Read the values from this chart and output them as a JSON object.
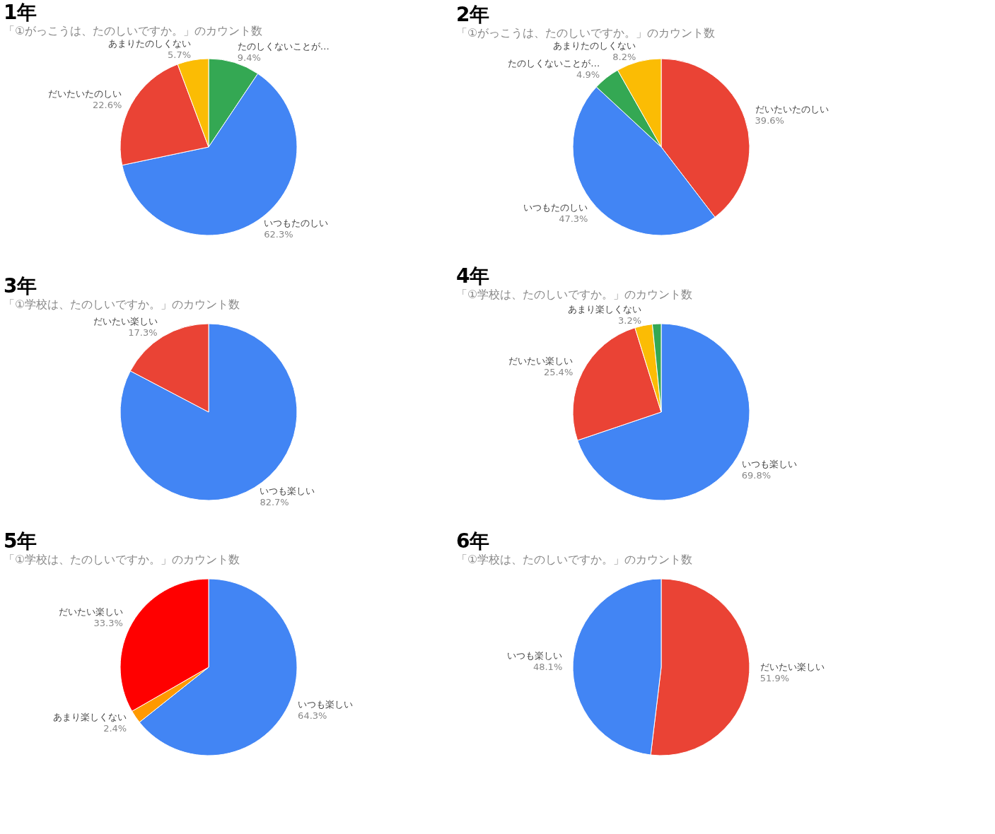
{
  "chart_data": [
    {
      "type": "pie",
      "title": "1年",
      "subtitle": "「①がっこうは、たのしいですか。」のカウント数",
      "categories": [
        "たのしくないことが…",
        "いつもたのしい",
        "だいたいたのしい",
        "あまりたのしくない"
      ],
      "values": [
        9.4,
        62.3,
        22.6,
        5.7
      ],
      "colors": [
        "#34a853",
        "#4285f4",
        "#ea4335",
        "#fbbc04"
      ],
      "value_labels": [
        "9.4%",
        "62.3%",
        "22.6%",
        "5.7%"
      ]
    },
    {
      "type": "pie",
      "title": "2年",
      "subtitle": "「①がっこうは、たのしいですか。」のカウント数",
      "categories": [
        "だいたいたのしい",
        "いつもたのしい",
        "たのしくないことが…",
        "あまりたのしくない"
      ],
      "values": [
        39.6,
        47.3,
        4.9,
        8.2
      ],
      "colors": [
        "#ea4335",
        "#4285f4",
        "#34a853",
        "#fbbc04"
      ],
      "value_labels": [
        "39.6%",
        "47.3%",
        "4.9%",
        "8.2%"
      ]
    },
    {
      "type": "pie",
      "title": "3年",
      "subtitle": "「①学校は、たのしいですか。」のカウント数",
      "categories": [
        "いつも楽しい",
        "だいたい楽しい"
      ],
      "values": [
        82.7,
        17.3
      ],
      "colors": [
        "#4285f4",
        "#ea4335"
      ],
      "value_labels": [
        "82.7%",
        "17.3%"
      ]
    },
    {
      "type": "pie",
      "title": "4年",
      "subtitle": "「①学校は、たのしいですか。」のカウント数",
      "categories": [
        "いつも楽しい",
        "だいたい楽しい",
        "あまり楽しくない",
        null
      ],
      "values": [
        69.8,
        25.4,
        3.2,
        1.6
      ],
      "colors": [
        "#4285f4",
        "#ea4335",
        "#fbbc04",
        "#34a853"
      ],
      "value_labels": [
        "69.8%",
        "25.4%",
        "3.2%",
        null
      ]
    },
    {
      "type": "pie",
      "title": "5年",
      "subtitle": "「①学校は、たのしいですか。」のカウント数",
      "categories": [
        "いつも楽しい",
        "あまり楽しくない",
        "だいたい楽しい"
      ],
      "values": [
        64.3,
        2.4,
        33.3
      ],
      "colors": [
        "#4285f4",
        "#ff9900",
        "#ff0000"
      ],
      "value_labels": [
        "64.3%",
        "2.4%",
        "33.3%"
      ]
    },
    {
      "type": "pie",
      "title": "6年",
      "subtitle": "「①学校は、たのしいですか。」のカウント数",
      "categories": [
        "だいたい楽しい",
        "いつも楽しい"
      ],
      "values": [
        51.9,
        48.1
      ],
      "colors": [
        "#ea4335",
        "#4285f4"
      ],
      "value_labels": [
        "51.9%",
        "48.1%"
      ]
    }
  ]
}
